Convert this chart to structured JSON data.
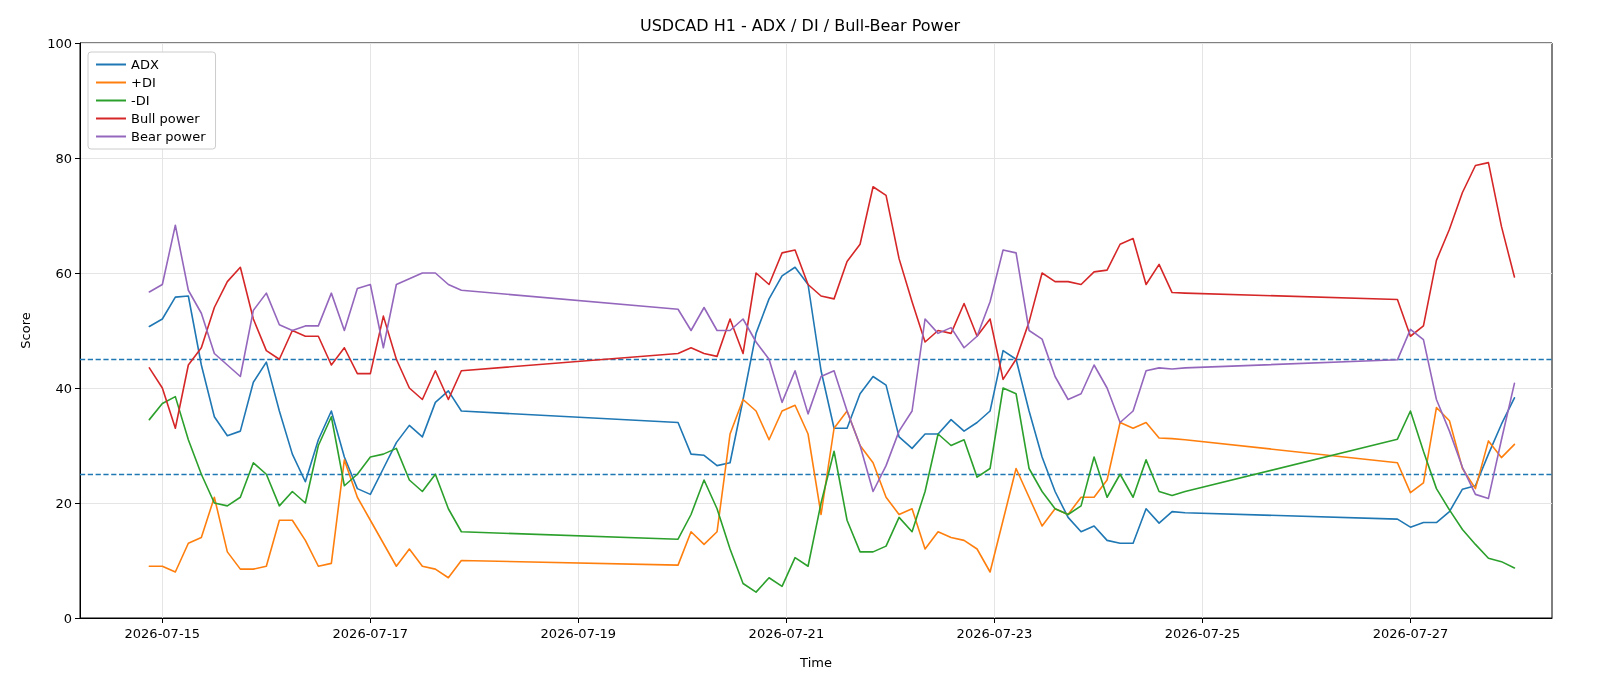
{
  "chart_data": {
    "type": "line",
    "title": "USDCAD H1 - ADX / DI / Bull-Bear Power",
    "xlabel": "Time",
    "ylabel": "Score",
    "x": [
      "2026-07-14T21:00",
      "2026-07-15T00:00",
      "2026-07-15T03:00",
      "2026-07-15T06:00",
      "2026-07-15T09:00",
      "2026-07-15T12:00",
      "2026-07-15T15:00",
      "2026-07-15T18:00",
      "2026-07-15T21:00",
      "2026-07-16T00:00",
      "2026-07-16T03:00",
      "2026-07-16T06:00",
      "2026-07-16T09:00",
      "2026-07-16T12:00",
      "2026-07-16T15:00",
      "2026-07-16T18:00",
      "2026-07-16T21:00",
      "2026-07-17T00:00",
      "2026-07-17T03:00",
      "2026-07-17T06:00",
      "2026-07-17T09:00",
      "2026-07-17T12:00",
      "2026-07-17T15:00",
      "2026-07-17T18:00",
      "2026-07-17T21:00",
      "2026-07-19T23:00",
      "2026-07-20T02:00",
      "2026-07-20T05:00",
      "2026-07-20T08:00",
      "2026-07-20T11:00",
      "2026-07-20T14:00",
      "2026-07-20T17:00",
      "2026-07-20T20:00",
      "2026-07-20T23:00",
      "2026-07-21T02:00",
      "2026-07-21T05:00",
      "2026-07-21T08:00",
      "2026-07-21T11:00",
      "2026-07-21T14:00",
      "2026-07-21T17:00",
      "2026-07-21T20:00",
      "2026-07-21T23:00",
      "2026-07-22T02:00",
      "2026-07-22T05:00",
      "2026-07-22T08:00",
      "2026-07-22T11:00",
      "2026-07-22T14:00",
      "2026-07-22T17:00",
      "2026-07-22T20:00",
      "2026-07-22T23:00",
      "2026-07-23T02:00",
      "2026-07-23T05:00",
      "2026-07-23T08:00",
      "2026-07-23T11:00",
      "2026-07-23T14:00",
      "2026-07-23T17:00",
      "2026-07-23T20:00",
      "2026-07-23T23:00",
      "2026-07-24T02:00",
      "2026-07-24T05:00",
      "2026-07-24T08:00",
      "2026-07-24T11:00",
      "2026-07-24T14:00",
      "2026-07-24T17:00",
      "2026-07-24T20:00",
      "2026-07-26T21:00",
      "2026-07-27T00:00",
      "2026-07-27T03:00",
      "2026-07-27T06:00",
      "2026-07-27T09:00",
      "2026-07-27T12:00",
      "2026-07-27T15:00",
      "2026-07-27T18:00",
      "2026-07-27T21:00",
      "2026-07-28T00:00"
    ],
    "series": [
      {
        "name": "ADX",
        "color": "#1f77b4",
        "values": [
          50.7,
          52,
          55.8,
          56,
          44,
          35,
          31.7,
          32.5,
          41,
          44.5,
          36,
          28.5,
          23.7,
          31,
          36,
          28,
          22.5,
          21.5,
          26,
          30.5,
          33.5,
          31.5,
          37.5,
          39.5,
          36,
          34,
          28.5,
          28.3,
          26.5,
          27,
          38,
          49.5,
          55.5,
          59.5,
          61,
          58,
          43,
          33,
          33,
          39,
          42,
          40.5,
          31.5,
          29.5,
          32,
          32,
          34.5,
          32.5,
          34,
          36,
          46.5,
          45,
          36,
          28,
          22,
          17.5,
          15,
          16,
          13.5,
          13,
          13,
          19,
          16.5,
          18.5,
          18.3,
          17.2,
          15.8,
          16.6,
          16.6,
          18.5,
          22.4,
          23,
          28.5,
          33.7,
          38.3
        ]
      },
      {
        "name": "+DI",
        "color": "#ff7f0e",
        "values": [
          9,
          9,
          8,
          13,
          14,
          21,
          11.5,
          8.5,
          8.5,
          9,
          17,
          17,
          13.5,
          9,
          9.5,
          27.5,
          21,
          17,
          13,
          9,
          12,
          9,
          8.5,
          7,
          10,
          9.2,
          15,
          12.8,
          15,
          32,
          38,
          36,
          31,
          36,
          37,
          32,
          18,
          33,
          36,
          30,
          27,
          21,
          18,
          19,
          12,
          15,
          14,
          13.5,
          12,
          8,
          17,
          26,
          21,
          16,
          19,
          18,
          21,
          21,
          24,
          34,
          33,
          34,
          31.3,
          31.2,
          31,
          27,
          21.8,
          23.5,
          36.6,
          34.3,
          26,
          22.5,
          30.8,
          27.9,
          30.2
        ]
      },
      {
        "name": "-DI",
        "color": "#2ca02c",
        "values": [
          34.5,
          37.3,
          38.5,
          31,
          25,
          20,
          19.5,
          21,
          27,
          25,
          19.5,
          22,
          20,
          30,
          35,
          23,
          25,
          28,
          28.5,
          29.5,
          24,
          22,
          25,
          19,
          15,
          13.7,
          18,
          24,
          19,
          12,
          6,
          4.5,
          7,
          5.5,
          10.5,
          9,
          20,
          29,
          17,
          11.5,
          11.5,
          12.5,
          17.5,
          15,
          22,
          32,
          30,
          31,
          24.5,
          26,
          40,
          39,
          26,
          22,
          19,
          18,
          19.5,
          28,
          21,
          25,
          21,
          27.5,
          22,
          21.3,
          22,
          31.1,
          36,
          29,
          22.5,
          18.8,
          15.4,
          12.8,
          10.4,
          9.8,
          8.7
        ]
      },
      {
        "name": "Bull power",
        "color": "#d62728",
        "values": [
          43.5,
          40,
          33,
          44,
          47,
          54,
          58.5,
          61,
          52,
          46.5,
          45,
          50,
          49,
          49,
          44,
          47,
          42.5,
          42.5,
          52.5,
          45,
          40,
          38,
          43,
          38,
          43,
          46,
          47,
          46,
          45.5,
          52,
          46,
          60,
          58,
          63.5,
          64,
          58,
          56,
          55.5,
          62,
          65,
          75,
          73.5,
          62.5,
          55,
          48,
          50,
          49.5,
          54.7,
          49,
          52,
          41.5,
          45,
          51.5,
          60,
          58.5,
          58.5,
          58,
          60.2,
          60.5,
          65,
          66,
          58,
          61.5,
          56.6,
          56.5,
          55.4,
          49,
          50.8,
          62.2,
          67.6,
          74,
          78.7,
          79.2,
          68.1,
          59.3
        ]
      },
      {
        "name": "Bear power",
        "color": "#9467bd",
        "values": [
          56.7,
          58,
          68.3,
          57,
          53,
          46,
          44,
          42,
          53.5,
          56.5,
          51,
          50,
          50.8,
          50.8,
          56.5,
          50,
          57.3,
          58,
          47,
          58,
          59,
          60,
          60,
          58,
          57,
          53.7,
          50,
          54,
          50,
          50,
          52,
          48,
          45,
          37.5,
          43,
          35.5,
          42,
          43,
          36,
          30,
          22,
          26.5,
          32.5,
          36,
          52,
          49.5,
          50.5,
          47,
          49,
          55,
          64,
          63.5,
          50,
          48.5,
          42,
          38,
          39,
          44,
          40,
          34,
          36,
          43,
          43.5,
          43.3,
          43.5,
          44.9,
          50.2,
          48.4,
          38,
          32.5,
          26.2,
          21.5,
          20.8,
          31,
          40.8
        ]
      }
    ],
    "xlim": [
      "2026-07-14T05:00",
      "2026-07-28T08:40"
    ],
    "xticks": [
      "2026-07-15",
      "2026-07-17",
      "2026-07-19",
      "2026-07-21",
      "2026-07-23",
      "2026-07-25",
      "2026-07-27"
    ],
    "ylim": [
      0,
      100
    ],
    "yticks": [
      0,
      20,
      40,
      60,
      80,
      100
    ],
    "ref_lines": [
      {
        "axis": "y",
        "value": 45,
        "color": "#1f77b4",
        "line_style": "dashed"
      },
      {
        "axis": "y",
        "value": 25,
        "color": "#1f77b4",
        "line_style": "dashed"
      }
    ],
    "grid": true,
    "legend": "top left",
    "marker": "none",
    "line_style": "solid"
  }
}
